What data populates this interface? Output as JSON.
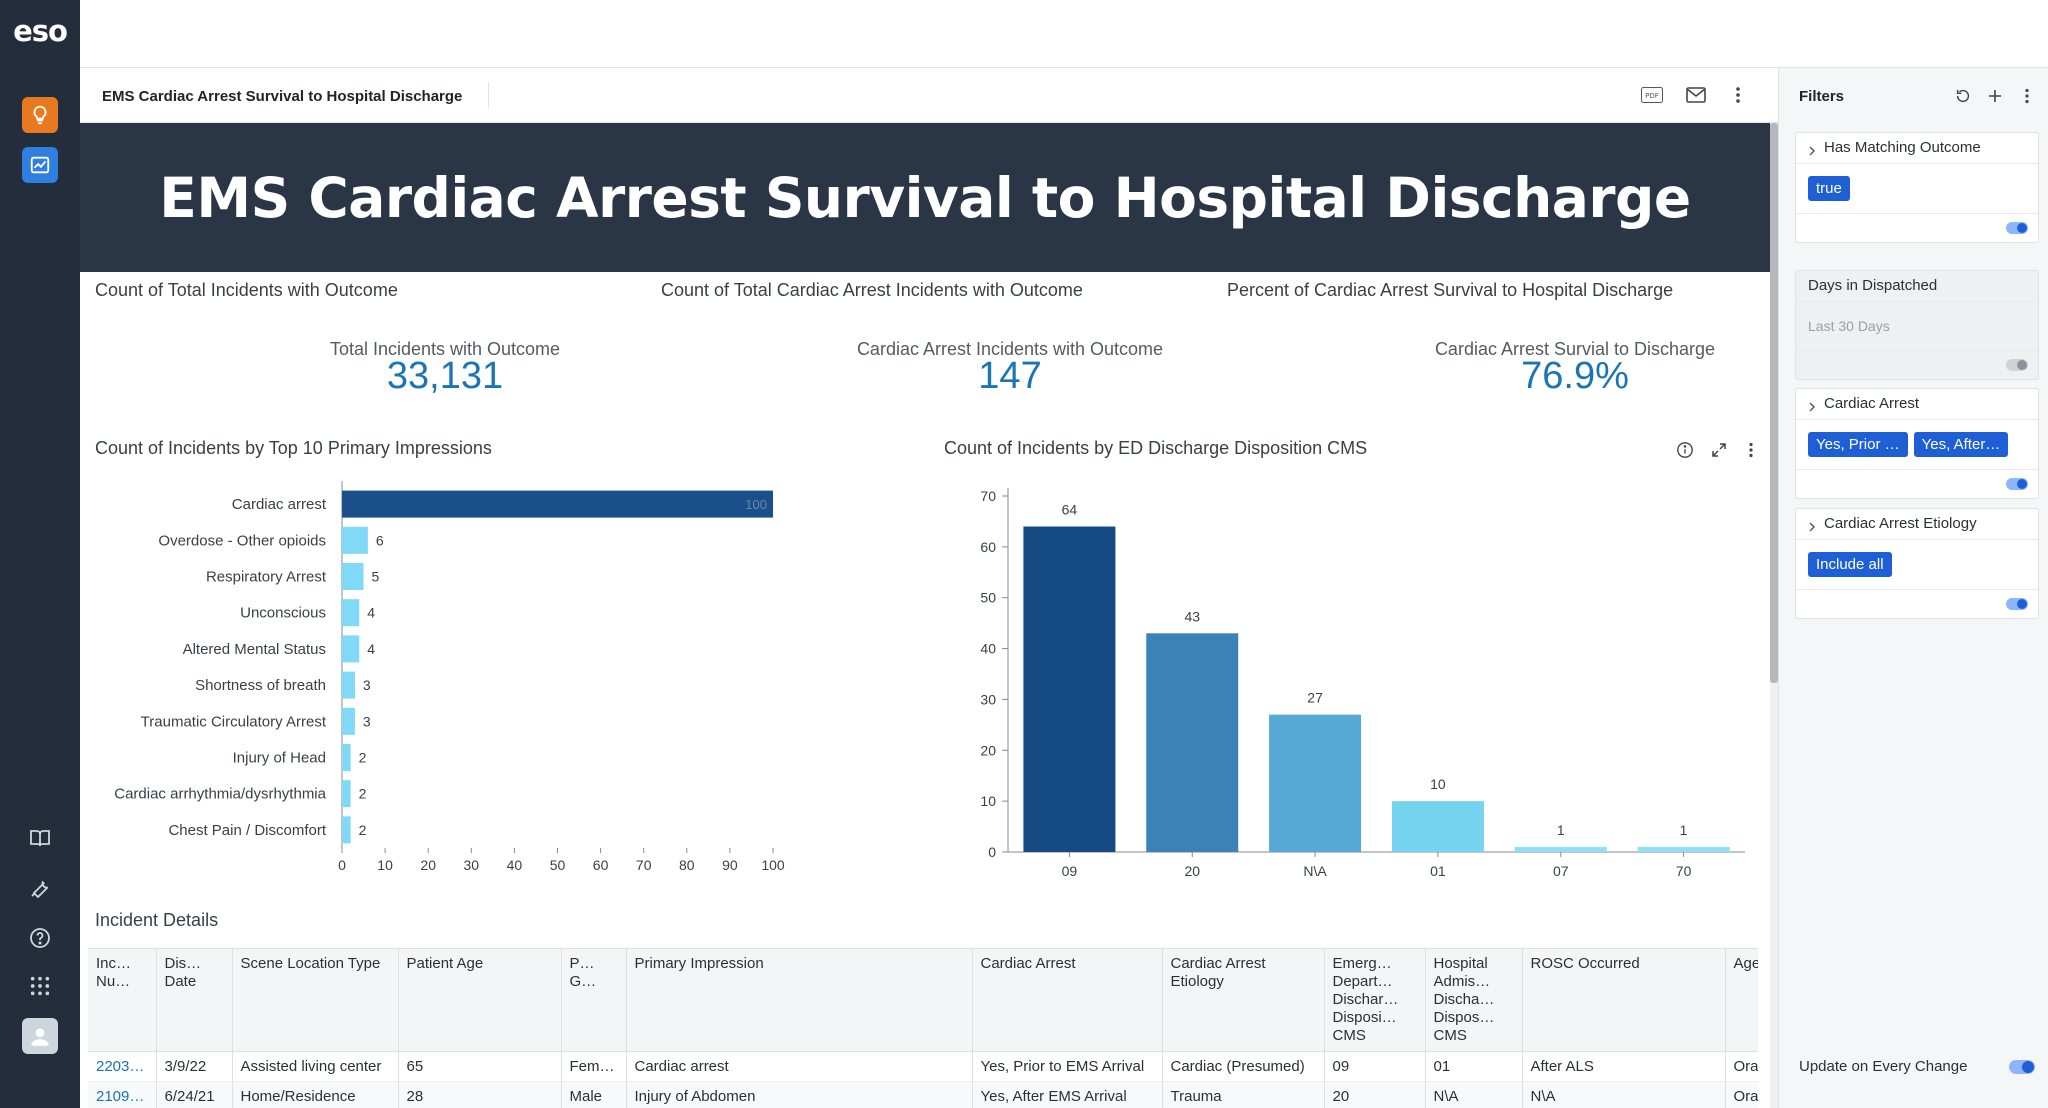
{
  "app": {
    "logo": "eso"
  },
  "dashboard": {
    "title": "EMS Cardiac Arrest Survival to Hospital Discharge",
    "banner": "EMS Cardiac Arrest Survival to Hospital Discharge",
    "icons": [
      "pdf-icon",
      "email-icon",
      "more-vertical-icon"
    ]
  },
  "kpis": [
    {
      "title": "Count of Total Incidents with Outcome",
      "label": "Total Incidents with Outcome",
      "value": "33,131"
    },
    {
      "title": "Count of Total Cardiac Arrest Incidents with Outcome",
      "label": "Cardiac Arrest Incidents with Outcome",
      "value": "147"
    },
    {
      "title": "Percent of Cardiac Arrest Survival to Hospital Discharge",
      "label": "Cardiac Arrest Survial to Discharge",
      "value": "76.9%"
    }
  ],
  "chart_data": [
    {
      "type": "bar",
      "orientation": "horizontal",
      "title": "Count of Incidents by Top 10 Primary Impressions",
      "categories": [
        "Cardiac arrest",
        "Overdose - Other opioids",
        "Respiratory Arrest",
        "Unconscious",
        "Altered Mental Status",
        "Shortness of breath",
        "Traumatic Circulatory Arrest",
        "Injury of Head",
        "Cardiac arrhythmia/dysrhythmia",
        "Chest Pain / Discomfort"
      ],
      "values": [
        100,
        6,
        5,
        4,
        4,
        3,
        3,
        2,
        2,
        2
      ],
      "xticks": [
        "0",
        "10",
        "20",
        "30",
        "40",
        "50",
        "60",
        "70",
        "80",
        "90",
        "100"
      ],
      "xlim": [
        0,
        100
      ],
      "colors": {
        "top": "#1b4f8a",
        "rest": "#7fd9f7"
      }
    },
    {
      "type": "bar",
      "title": "Count of Incidents by ED Discharge Disposition CMS",
      "categories": [
        "09",
        "20",
        "N\\A",
        "01",
        "07",
        "70"
      ],
      "values": [
        64,
        43,
        27,
        10,
        1,
        1
      ],
      "yticks": [
        "0",
        "10",
        "20",
        "30",
        "40",
        "50",
        "60",
        "70"
      ],
      "ylim": [
        0,
        70
      ],
      "colors": [
        "#164a82",
        "#3b82b6",
        "#56a9d3",
        "#75d3ef",
        "#8ee0f7",
        "#8ee0f7"
      ]
    }
  ],
  "table": {
    "title": "Incident Details",
    "columns": [
      "Inc… Nu…",
      "Dis… Date",
      "Scene Location Type",
      "Patient Age",
      "P… G…",
      "Primary Impression",
      "Cardiac Arrest",
      "Cardiac Arrest Etiology",
      "Emerg… Depart… Dischar… Disposi… CMS",
      "Hospital Admis… Discha… Dispos… CMS",
      "ROSC Occurred",
      "Age"
    ],
    "rows": [
      [
        "2203…",
        "3/9/22",
        "Assisted living center",
        "65",
        "Fem…",
        "Cardiac arrest",
        "Yes, Prior to EMS Arrival",
        "Cardiac (Presumed)",
        "09",
        "01",
        "After ALS",
        "Ora"
      ],
      [
        "2109…",
        "6/24/21",
        "Home/Residence",
        "28",
        "Male",
        "Injury of Abdomen",
        "Yes, After EMS Arrival",
        "Trauma",
        "20",
        "N\\A",
        "N\\A",
        "Ora"
      ]
    ]
  },
  "filters": {
    "title": "Filters",
    "cards": [
      {
        "label": "Has Matching Outcome",
        "chips": [
          "true"
        ],
        "enabled": true
      },
      {
        "label": "Days in Dispatched",
        "value": "Last 30 Days",
        "enabled": false
      },
      {
        "label": "Cardiac Arrest",
        "chips": [
          "Yes, Prior …",
          "Yes, After…"
        ],
        "enabled": true
      },
      {
        "label": "Cardiac Arrest Etiology",
        "chips": [
          "Include all"
        ],
        "enabled": true
      }
    ],
    "update_label": "Update on Every Change"
  }
}
